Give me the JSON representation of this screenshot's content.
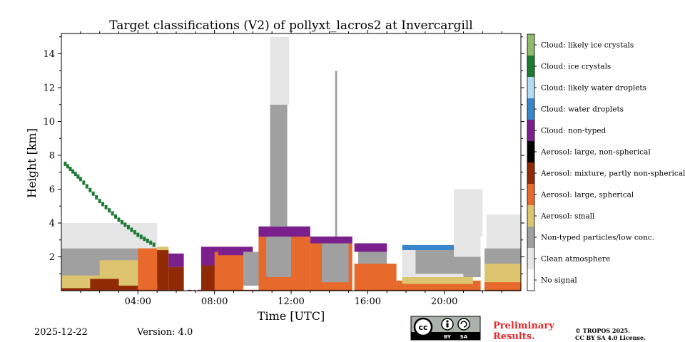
{
  "chart_data": {
    "type": "heatmap",
    "title": "Target classifications (V2) of pollyxt_lacros2 at Invercargill",
    "xlabel": "Time [UTC]",
    "ylabel": "Height [km]",
    "xlim_hours": [
      0,
      24
    ],
    "ylim_km": [
      0,
      15.2
    ],
    "x_ticks": [
      {
        "value": 4,
        "label": "04:00"
      },
      {
        "value": 8,
        "label": "08:00"
      },
      {
        "value": 12,
        "label": "12:00"
      },
      {
        "value": 16,
        "label": "16:00"
      },
      {
        "value": 20,
        "label": "20:00"
      }
    ],
    "y_ticks": [
      {
        "value": 2,
        "label": "2"
      },
      {
        "value": 4,
        "label": "4"
      },
      {
        "value": 6,
        "label": "6"
      },
      {
        "value": 8,
        "label": "8"
      },
      {
        "value": 10,
        "label": "10"
      },
      {
        "value": 12,
        "label": "12"
      },
      {
        "value": 14,
        "label": "14"
      }
    ],
    "classes": [
      {
        "label": "No signal",
        "color": "#ffffff"
      },
      {
        "label": "Clean atmosphere",
        "color": "#e6e6e6"
      },
      {
        "label": "Non-typed particles/low conc.",
        "color": "#a0a0a0"
      },
      {
        "label": "Aerosol: small",
        "color": "#dcc56e"
      },
      {
        "label": "Aerosol: large, spherical",
        "color": "#e8692c"
      },
      {
        "label": "Aerosol: mixture, partly non-spherical",
        "color": "#902a05"
      },
      {
        "label": "Aerosol: large, non-spherical",
        "color": "#000000"
      },
      {
        "label": "Cloud: non-typed",
        "color": "#7a1f8c"
      },
      {
        "label": "Cloud: water droplets",
        "color": "#3a86cc"
      },
      {
        "label": "Cloud: likely water droplets",
        "color": "#b4dcf5"
      },
      {
        "label": "Cloud: ice crystals",
        "color": "#1d7a35"
      },
      {
        "label": "Cloud: likely ice crystals",
        "color": "#8fbc6a"
      }
    ],
    "regions": [
      {
        "class": 2,
        "t0": 0.0,
        "t1": 5.5,
        "h0": 0.4,
        "h1": 2.5
      },
      {
        "class": 1,
        "t0": 0.0,
        "t1": 5.0,
        "h0": 2.5,
        "h1": 4.0
      },
      {
        "class": 3,
        "t0": 0.0,
        "t1": 2.0,
        "h0": 0.1,
        "h1": 0.9
      },
      {
        "class": 3,
        "t0": 2.0,
        "t1": 4.5,
        "h0": 0.1,
        "h1": 1.8
      },
      {
        "class": 5,
        "t0": 0.0,
        "t1": 1.5,
        "h0": 0.0,
        "h1": 0.15
      },
      {
        "class": 5,
        "t0": 1.5,
        "t1": 3.0,
        "h0": 0.0,
        "h1": 0.7
      },
      {
        "class": 5,
        "t0": 3.0,
        "t1": 4.0,
        "h0": 0.0,
        "h1": 0.3
      },
      {
        "class": 4,
        "t0": 4.0,
        "t1": 5.0,
        "h0": 0.0,
        "h1": 2.5
      },
      {
        "class": 5,
        "t0": 5.0,
        "t1": 5.6,
        "h0": 0.0,
        "h1": 2.4
      },
      {
        "class": 3,
        "t0": 5.0,
        "t1": 5.6,
        "h0": 2.4,
        "h1": 2.6
      },
      {
        "class": 5,
        "t0": 5.6,
        "t1": 6.4,
        "h0": 0.0,
        "h1": 1.4
      },
      {
        "class": 7,
        "t0": 5.6,
        "t1": 6.4,
        "h0": 1.4,
        "h1": 2.2
      },
      {
        "class": 5,
        "t0": 7.3,
        "t1": 8.5,
        "h0": 0.0,
        "h1": 2.5
      },
      {
        "class": 7,
        "t0": 7.3,
        "t1": 8.2,
        "h0": 1.5,
        "h1": 2.6
      },
      {
        "class": 4,
        "t0": 8.0,
        "t1": 9.5,
        "h0": 0.0,
        "h1": 2.3
      },
      {
        "class": 7,
        "t0": 8.2,
        "t1": 10.0,
        "h0": 2.1,
        "h1": 2.6
      },
      {
        "class": 2,
        "t0": 9.5,
        "t1": 10.3,
        "h0": 0.3,
        "h1": 2.3
      },
      {
        "class": 4,
        "t0": 10.3,
        "t1": 13.0,
        "h0": 0.0,
        "h1": 3.2
      },
      {
        "class": 2,
        "t0": 10.7,
        "t1": 12.0,
        "h0": 0.8,
        "h1": 3.6
      },
      {
        "class": 7,
        "t0": 10.3,
        "t1": 13.0,
        "h0": 3.2,
        "h1": 3.8
      },
      {
        "class": 2,
        "t0": 10.9,
        "t1": 11.8,
        "h0": 3.8,
        "h1": 11.0
      },
      {
        "class": 1,
        "t0": 10.9,
        "t1": 11.9,
        "h0": 11.0,
        "h1": 15.0
      },
      {
        "class": 4,
        "t0": 13.0,
        "t1": 15.2,
        "h0": 0.0,
        "h1": 2.8
      },
      {
        "class": 2,
        "t0": 13.6,
        "t1": 15.0,
        "h0": 0.5,
        "h1": 3.0
      },
      {
        "class": 7,
        "t0": 13.0,
        "t1": 15.2,
        "h0": 2.8,
        "h1": 3.2
      },
      {
        "class": 2,
        "t0": 14.3,
        "t1": 14.4,
        "h0": 3.2,
        "h1": 13.0
      },
      {
        "class": 4,
        "t0": 15.3,
        "t1": 17.5,
        "h0": 0.0,
        "h1": 1.6
      },
      {
        "class": 2,
        "t0": 15.5,
        "t1": 17.0,
        "h0": 1.6,
        "h1": 2.5
      },
      {
        "class": 7,
        "t0": 15.3,
        "t1": 17.0,
        "h0": 2.3,
        "h1": 2.8
      },
      {
        "class": 4,
        "t0": 17.5,
        "t1": 24.0,
        "h0": 0.0,
        "h1": 0.6
      },
      {
        "class": 3,
        "t0": 17.8,
        "t1": 21.5,
        "h0": 0.4,
        "h1": 0.8
      },
      {
        "class": 1,
        "t0": 17.8,
        "t1": 21.0,
        "h0": 0.8,
        "h1": 2.5
      },
      {
        "class": 2,
        "t0": 18.5,
        "t1": 21.0,
        "h0": 1.0,
        "h1": 2.5
      },
      {
        "class": 8,
        "t0": 17.8,
        "t1": 21.0,
        "h0": 2.4,
        "h1": 2.7
      },
      {
        "class": 2,
        "t0": 21.0,
        "t1": 24.0,
        "h0": 0.8,
        "h1": 2.5
      },
      {
        "class": 3,
        "t0": 22.0,
        "t1": 24.0,
        "h0": 0.5,
        "h1": 1.6
      },
      {
        "class": 1,
        "t0": 22.2,
        "t1": 24.0,
        "h0": 2.5,
        "h1": 4.5
      },
      {
        "class": 1,
        "t0": 20.5,
        "t1": 22.0,
        "h0": 2.0,
        "h1": 6.0
      },
      {
        "class": 5,
        "t0": 0.0,
        "t1": 24.0,
        "h0": 0.0,
        "h1": 0.05
      }
    ],
    "ice_cloud_trail": {
      "class": 10,
      "points": [
        {
          "t": 0.2,
          "h": 7.5
        },
        {
          "t": 1.0,
          "h": 6.6
        },
        {
          "t": 2.0,
          "h": 5.3
        },
        {
          "t": 3.0,
          "h": 4.2
        },
        {
          "t": 4.0,
          "h": 3.3
        },
        {
          "t": 5.0,
          "h": 2.6
        }
      ]
    },
    "gaps_hours": [
      [
        6.4,
        6.6
      ],
      [
        6.8,
        6.9
      ],
      [
        7.0,
        7.1
      ],
      [
        15.2,
        15.3
      ],
      [
        21.9,
        22.1
      ]
    ]
  },
  "footer": {
    "date": "2025-12-22",
    "version": "Version: 4.0",
    "preliminary_line1": "Preliminary",
    "preliminary_line2": "Results.",
    "copyright_line1": "© TROPOS 2025.",
    "copyright_line2": "CC BY SA 4.0 License.",
    "license_badge": {
      "cc": "cc",
      "by": "BY",
      "sa": "SA"
    }
  }
}
